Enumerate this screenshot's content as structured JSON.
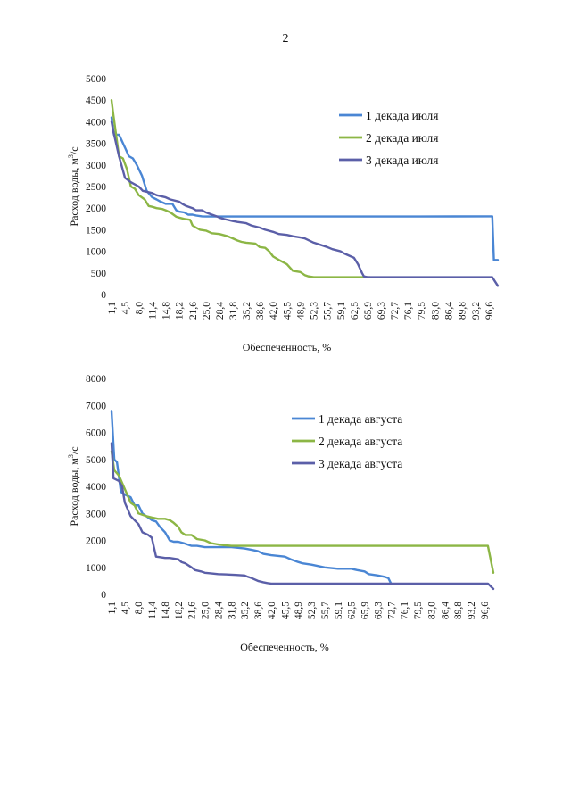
{
  "page": {
    "number": "2"
  },
  "chart_data": [
    {
      "type": "line",
      "title": "",
      "xlabel": "Обеспеченность, %",
      "ylabel": "Расход воды, м³/с",
      "ylabel_main": "Расход воды, м",
      "ylabel_sup": "3",
      "ylabel_tail": "/с",
      "ylim": [
        0,
        5000
      ],
      "yticks": [
        0,
        500,
        1000,
        1500,
        2000,
        2500,
        3000,
        3500,
        4000,
        4500,
        5000
      ],
      "xlim": [
        1.1,
        98.9
      ],
      "xtick_labels": [
        "1,1",
        "4,5",
        "8,0",
        "11,4",
        "14,8",
        "18,2",
        "21,6",
        "25,0",
        "28,4",
        "31,8",
        "35,2",
        "38,6",
        "42,0",
        "45,5",
        "48,9",
        "52,3",
        "55,7",
        "59,1",
        "62,5",
        "65,9",
        "69,3",
        "72,7",
        "76,1",
        "79,5",
        "83,0",
        "86,4",
        "89,8",
        "93,2",
        "96,6"
      ],
      "xtick_values": [
        1.1,
        4.5,
        8.0,
        11.4,
        14.8,
        18.2,
        21.6,
        25.0,
        28.4,
        31.8,
        35.2,
        38.6,
        42.0,
        45.5,
        48.9,
        52.3,
        55.7,
        59.1,
        62.5,
        65.9,
        69.3,
        72.7,
        76.1,
        79.5,
        83.0,
        86.4,
        89.8,
        93.2,
        96.6
      ],
      "legend_position": "top-right",
      "series": [
        {
          "name": "1 декада июля",
          "color": "#4a86d4",
          "x": [
            1.1,
            1.7,
            3.0,
            4.5,
            5.5,
            6.5,
            7.5,
            8.8,
            10.0,
            11.4,
            12.5,
            13.5,
            14.8,
            16.5,
            17.5,
            18.2,
            19.5,
            20.5,
            21.6,
            22.5,
            24.0,
            25.0,
            28.4,
            35.2,
            48.9,
            62.5,
            79.5,
            96.6,
            97.5,
            97.9,
            98.9
          ],
          "y": [
            4100,
            3700,
            3700,
            3400,
            3200,
            3150,
            3000,
            2750,
            2400,
            2250,
            2200,
            2150,
            2100,
            2100,
            1950,
            1920,
            1900,
            1850,
            1850,
            1830,
            1810,
            1805,
            1805,
            1805,
            1805,
            1805,
            1805,
            1810,
            1810,
            800,
            800
          ]
        },
        {
          "name": "2 декада июля",
          "color": "#8cb645",
          "x": [
            1.1,
            1.5,
            3.0,
            4.0,
            5.0,
            6.0,
            7.0,
            8.0,
            9.5,
            10.5,
            11.4,
            12.5,
            14.0,
            14.8,
            16.0,
            17.5,
            18.2,
            19.5,
            21.0,
            21.6,
            22.5,
            23.5,
            25.0,
            26.5,
            28.4,
            30.5,
            31.8,
            33.0,
            34.0,
            35.2,
            37.5,
            38.6,
            40.0,
            41.0,
            42.0,
            43.5,
            45.5,
            47.0,
            48.9,
            50.0,
            51.0,
            52.3,
            53.5,
            55.7,
            62.5,
            65.9,
            66.5
          ],
          "y": [
            4500,
            4200,
            3200,
            3150,
            2900,
            2500,
            2450,
            2300,
            2200,
            2050,
            2030,
            2000,
            1980,
            1950,
            1900,
            1800,
            1780,
            1750,
            1730,
            1600,
            1550,
            1500,
            1480,
            1420,
            1400,
            1350,
            1300,
            1250,
            1220,
            1200,
            1180,
            1100,
            1080,
            1000,
            880,
            800,
            700,
            550,
            520,
            450,
            420,
            400,
            400,
            400,
            400,
            400,
            400
          ]
        },
        {
          "name": "3 декада июля",
          "color": "#5b5fa8",
          "x": [
            1.1,
            1.5,
            3.0,
            4.5,
            6.0,
            8.0,
            9.0,
            11.4,
            12.5,
            14.8,
            16.0,
            18.2,
            19.0,
            20.0,
            21.6,
            22.5,
            24.0,
            25.0,
            26.5,
            28.0,
            28.4,
            29.5,
            31.8,
            33.0,
            35.2,
            36.5,
            38.6,
            40.0,
            42.0,
            43.5,
            45.5,
            47.0,
            48.9,
            50.0,
            52.3,
            54.0,
            55.7,
            57.0,
            59.1,
            60.0,
            62.5,
            63.5,
            64.5,
            65.0,
            65.9,
            80.0,
            96.6,
            97.5,
            98.9
          ],
          "y": [
            4000,
            3800,
            3200,
            2700,
            2600,
            2500,
            2400,
            2350,
            2300,
            2250,
            2200,
            2150,
            2100,
            2050,
            2000,
            1950,
            1950,
            1900,
            1850,
            1800,
            1780,
            1750,
            1700,
            1680,
            1650,
            1600,
            1550,
            1500,
            1450,
            1400,
            1380,
            1350,
            1320,
            1300,
            1200,
            1150,
            1100,
            1050,
            1000,
            950,
            850,
            700,
            500,
            420,
            400,
            400,
            400,
            400,
            200
          ]
        }
      ]
    },
    {
      "type": "line",
      "title": "",
      "xlabel": "Обеспеченность, %",
      "ylabel": "Расход воды, м³/с",
      "ylabel_main": "Расход воды, м",
      "ylabel_sup": "3",
      "ylabel_tail": "/с",
      "ylim": [
        0,
        8000
      ],
      "yticks": [
        0,
        1000,
        2000,
        3000,
        4000,
        5000,
        6000,
        7000,
        8000
      ],
      "xlim": [
        1.1,
        98.9
      ],
      "xtick_labels": [
        "1,1",
        "4,5",
        "8,0",
        "11,4",
        "14,8",
        "18,2",
        "21,6",
        "25,0",
        "28,4",
        "31,8",
        "35,2",
        "38,6",
        "42,0",
        "45,5",
        "48,9",
        "52,3",
        "55,7",
        "59,1",
        "62,5",
        "65,9",
        "69,3",
        "72,7",
        "76,1",
        "79,5",
        "83,0",
        "86,4",
        "89,8",
        "93,2",
        "96,6"
      ],
      "xtick_values": [
        1.1,
        4.5,
        8.0,
        11.4,
        14.8,
        18.2,
        21.6,
        25.0,
        28.4,
        31.8,
        35.2,
        38.6,
        42.0,
        45.5,
        48.9,
        52.3,
        55.7,
        59.1,
        62.5,
        65.9,
        69.3,
        72.7,
        76.1,
        79.5,
        83.0,
        86.4,
        89.8,
        93.2,
        96.6
      ],
      "legend_position": "top-right",
      "series": [
        {
          "name": "1 декада августа",
          "color": "#4a86d4",
          "x": [
            1.1,
            1.8,
            2.5,
            3.5,
            4.5,
            6.0,
            7.0,
            8.0,
            9.0,
            10.0,
            11.4,
            12.5,
            13.5,
            14.8,
            16.0,
            17.0,
            18.2,
            19.5,
            20.5,
            21.6,
            23.0,
            25.0,
            28.4,
            31.8,
            35.2,
            37.0,
            38.6,
            40.0,
            42.0,
            45.5,
            47.0,
            48.9,
            50.0,
            52.3,
            55.7,
            59.1,
            62.5,
            64.0,
            65.9,
            67.0,
            69.3,
            71.0,
            72.0,
            72.7
          ],
          "y": [
            6800,
            5000,
            4900,
            3800,
            3700,
            3600,
            3300,
            3300,
            3000,
            2900,
            2750,
            2700,
            2500,
            2300,
            2000,
            1950,
            1950,
            1900,
            1850,
            1800,
            1800,
            1750,
            1750,
            1750,
            1700,
            1650,
            1600,
            1500,
            1450,
            1400,
            1300,
            1200,
            1150,
            1100,
            1000,
            950,
            950,
            900,
            850,
            750,
            700,
            650,
            600,
            400
          ]
        },
        {
          "name": "2 декада августа",
          "color": "#8cb645",
          "x": [
            1.1,
            1.8,
            3.0,
            4.5,
            6.0,
            7.0,
            8.0,
            10.0,
            11.4,
            13.0,
            14.8,
            16.0,
            17.0,
            18.2,
            19.0,
            20.0,
            21.6,
            23.0,
            25.0,
            26.5,
            28.4,
            30.0,
            31.8,
            35.2,
            48.9,
            62.5,
            79.5,
            96.6,
            97.5,
            98.9
          ],
          "y": [
            5300,
            4600,
            4400,
            3900,
            3400,
            3300,
            3000,
            2900,
            2850,
            2800,
            2800,
            2750,
            2650,
            2500,
            2300,
            2200,
            2200,
            2050,
            2000,
            1900,
            1850,
            1820,
            1800,
            1800,
            1800,
            1800,
            1800,
            1800,
            1800,
            800
          ]
        },
        {
          "name": "3 декада августа",
          "color": "#5b5fa8",
          "x": [
            1.1,
            1.6,
            3.0,
            3.8,
            4.5,
            6.0,
            8.0,
            9.0,
            10.5,
            11.4,
            12.5,
            13.5,
            14.8,
            16.0,
            18.2,
            19.0,
            20.0,
            21.6,
            22.5,
            24.0,
            25.0,
            26.5,
            28.4,
            30.0,
            31.8,
            33.0,
            35.2,
            36.0,
            37.0,
            38.6,
            40.0,
            41.0,
            42.0,
            45.5,
            55.7,
            65.9,
            79.5,
            96.6,
            97.5,
            98.9
          ],
          "y": [
            5600,
            4300,
            4200,
            4000,
            3400,
            2900,
            2600,
            2300,
            2200,
            2100,
            1400,
            1380,
            1350,
            1350,
            1300,
            1200,
            1150,
            1000,
            900,
            850,
            800,
            780,
            750,
            740,
            730,
            720,
            700,
            650,
            600,
            500,
            450,
            420,
            400,
            400,
            400,
            400,
            400,
            400,
            400,
            200
          ]
        }
      ]
    }
  ]
}
